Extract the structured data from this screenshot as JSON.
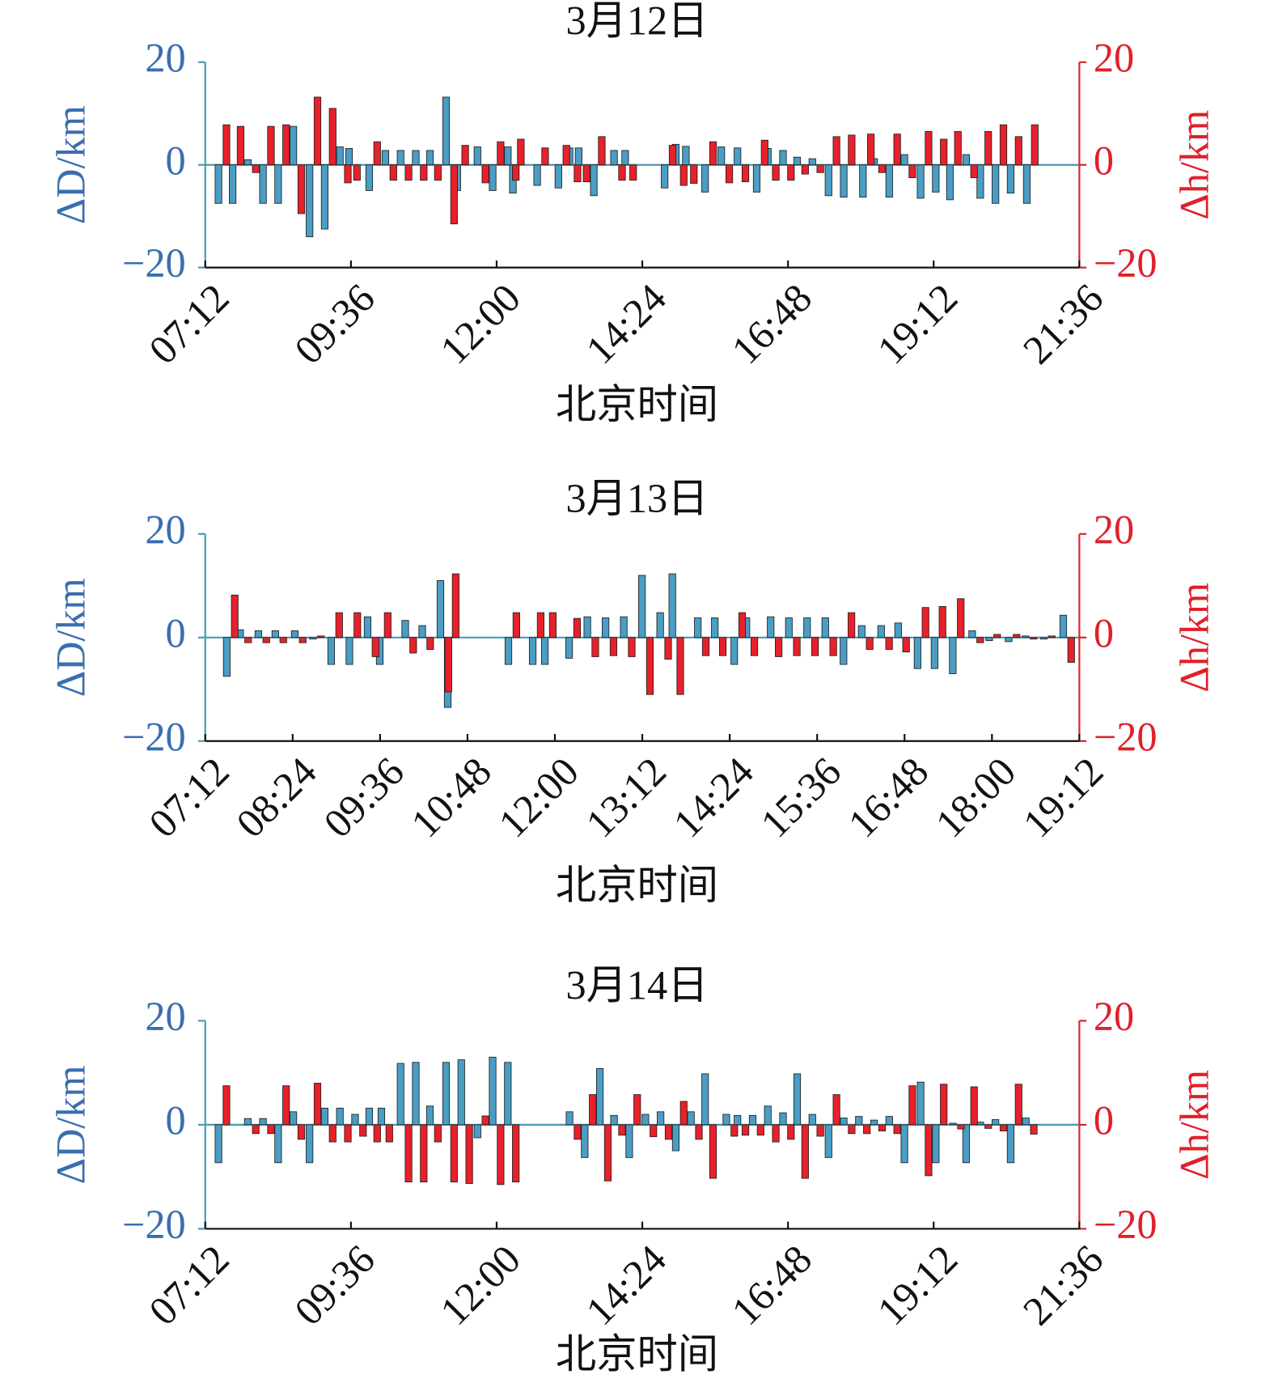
{
  "chart_data": [
    {
      "type": "bar",
      "title": "3月12日",
      "xlabel": "北京时间",
      "ylabel": "ΔD/km",
      "y2label": "Δh/km",
      "x": [
        449,
        463,
        478,
        493,
        508,
        523,
        539,
        554,
        569,
        578,
        598,
        614,
        629,
        644,
        658,
        674,
        685,
        705,
        720,
        735,
        740,
        764,
        785,
        796,
        805,
        820,
        840,
        851,
        890,
        901,
        911,
        930,
        946,
        962,
        981,
        992,
        1007,
        1021,
        1036,
        1052,
        1067,
        1086,
        1097,
        1112,
        1127,
        1143,
        1158,
        1172,
        1188,
        1202,
        1217,
        1232,
        1248
      ],
      "series": [
        {
          "color": "#4a9dc4",
          "values": [
            -7.5,
            -7.5,
            1,
            -7.5,
            -7.5,
            7.5,
            -14,
            -12.5,
            3.5,
            3.2,
            -5,
            2.8,
            2.8,
            2.8,
            2.8,
            13.2,
            -5,
            3.5,
            -5,
            3.5,
            -5.5,
            -4,
            -4.5,
            3.3,
            3.3,
            -6,
            2.8,
            2.8,
            -4.5,
            4,
            3.6,
            -5.3,
            3.5,
            3.3,
            -5.3,
            3.2,
            2.8,
            1.5,
            1.2,
            -6,
            -6.3,
            -6.3,
            1.2,
            -6.3,
            2,
            -6.5,
            -5.3,
            -6.8,
            2,
            -6.5,
            -7.5,
            -5.5,
            -7.5
          ]
        },
        {
          "color": "#e8202a",
          "axis": "y2",
          "values": [
            7.8,
            7.5,
            -1.5,
            7.5,
            7.8,
            -9.5,
            13.2,
            11,
            -3.5,
            -3,
            4.5,
            -3,
            -3,
            -3,
            -3,
            -11.5,
            3.8,
            -3.5,
            4.5,
            -3,
            5,
            3.3,
            3.8,
            -3.3,
            -3.3,
            5.5,
            -3,
            -3,
            3.8,
            -4,
            -3.6,
            4.5,
            -3.5,
            -3.3,
            4.8,
            -3,
            -3,
            -1.8,
            -1.5,
            5.5,
            5.8,
            6,
            -1.5,
            6,
            -2.5,
            6.5,
            5,
            6.5,
            -2.5,
            6.5,
            7.8,
            5.5,
            7.8
          ]
        }
      ],
      "xlim": [
        432,
        1296
      ],
      "xticks": [
        {
          "value": 432,
          "label": "07:12"
        },
        {
          "value": 576,
          "label": "09:36"
        },
        {
          "value": 720,
          "label": "12:00"
        },
        {
          "value": 864,
          "label": "14:24"
        },
        {
          "value": 1008,
          "label": "16:48"
        },
        {
          "value": 1152,
          "label": "19:12"
        },
        {
          "value": 1296,
          "label": "21:36"
        }
      ],
      "ylim": [
        -20,
        20
      ],
      "yticks": [
        {
          "value": -20,
          "label": "−20"
        },
        0,
        20
      ],
      "y2lim": [
        -20,
        20
      ],
      "y2ticks": [
        {
          "value": -20,
          "label": "−20"
        },
        0,
        20
      ]
    },
    {
      "type": "bar",
      "title": "3月13日",
      "xlabel": "北京时间",
      "ylabel": "ΔD/km",
      "y2label": "Δh/km",
      "x": [
        453,
        464,
        479,
        493,
        509,
        524,
        539,
        554,
        569,
        579,
        600,
        614,
        629,
        635,
        685,
        705,
        715,
        735,
        750,
        765,
        780,
        795,
        810,
        820,
        841,
        855,
        871,
        881,
        901,
        916,
        931,
        946,
        961,
        976,
        992,
        1006,
        1022,
        1036,
        1051,
        1067,
        1081,
        1097,
        1111,
        1126,
        1142
      ],
      "series": [
        {
          "color": "#4a9dc4",
          "values": [
            -7.5,
            1.5,
            1.3,
            1.3,
            1.3,
            -0.3,
            -5.2,
            -5.2,
            4,
            -5.2,
            3.3,
            2.3,
            11,
            -13.5,
            -5.2,
            -5.2,
            -5.2,
            -4,
            4,
            3.8,
            4,
            12,
            4.8,
            12.3,
            3.8,
            3.8,
            -5.2,
            3.8,
            4,
            3.8,
            3.8,
            3.8,
            -5.2,
            2.3,
            2.3,
            2.8,
            -6,
            -6,
            -7,
            1.3,
            -0.6,
            -0.8,
            0.3,
            -0.3,
            4.3
          ]
        },
        {
          "color": "#e8202a",
          "axis": "y2",
          "values": [
            8.2,
            -1,
            -1,
            -1,
            -1,
            0.3,
            4.8,
            4.8,
            -3.7,
            4.8,
            -3,
            -2.3,
            -10.5,
            12.3,
            4.8,
            4.8,
            4.8,
            3.7,
            -3.7,
            -3.5,
            -3.7,
            -11,
            -4.2,
            -11,
            -3.5,
            -3.5,
            4.8,
            -3.5,
            -3.7,
            -3.5,
            -3.5,
            -3.5,
            4.8,
            -2.3,
            -2.3,
            -2.8,
            5.8,
            6,
            7.5,
            -1,
            0.6,
            0.6,
            -0.3,
            0.3,
            -4.8
          ]
        }
      ],
      "xlim": [
        432,
        1152
      ],
      "xticks": [
        {
          "value": 432,
          "label": "07:12"
        },
        {
          "value": 504,
          "label": "08:24"
        },
        {
          "value": 576,
          "label": "09:36"
        },
        {
          "value": 648,
          "label": "10:48"
        },
        {
          "value": 720,
          "label": "12:00"
        },
        {
          "value": 792,
          "label": "13:12"
        },
        {
          "value": 864,
          "label": "14:24"
        },
        {
          "value": 936,
          "label": "15:36"
        },
        {
          "value": 1008,
          "label": "16:48"
        },
        {
          "value": 1080,
          "label": "18:00"
        },
        {
          "value": 1152,
          "label": "19:12"
        }
      ],
      "ylim": [
        -20,
        20
      ],
      "yticks": [
        {
          "value": -20,
          "label": "−20"
        },
        0,
        20
      ],
      "y2lim": [
        -20,
        20
      ],
      "y2ticks": [
        {
          "value": -20,
          "label": "−20"
        },
        0,
        20
      ]
    },
    {
      "type": "bar",
      "title": "3月14日",
      "xlabel": "北京时间",
      "ylabel": "ΔD/km",
      "y2label": "Δh/km",
      "x": [
        449,
        478,
        493,
        508,
        523,
        539,
        554,
        569,
        584,
        598,
        610,
        629,
        644,
        658,
        674,
        689,
        705,
        720,
        735,
        796,
        811,
        826,
        840,
        855,
        871,
        886,
        901,
        916,
        930,
        951,
        962,
        977,
        992,
        1007,
        1021,
        1036,
        1052,
        1067,
        1082,
        1097,
        1112,
        1127,
        1143,
        1158,
        1175,
        1188,
        1202,
        1217,
        1232,
        1247
      ],
      "series": [
        {
          "color": "#4a9dc4",
          "values": [
            -7.3,
            1.2,
            1.2,
            -7.3,
            2.5,
            -7.3,
            3.2,
            3.2,
            2,
            3.2,
            3.2,
            11.8,
            12,
            3.6,
            12,
            12.5,
            -2.5,
            13,
            12,
            2.5,
            -6.3,
            10.8,
            1.8,
            -6.3,
            2,
            2.5,
            -5,
            2.5,
            9.8,
            2,
            1.8,
            1.8,
            3.6,
            2.3,
            9.8,
            2,
            -6.3,
            1.3,
            1.6,
            0.9,
            1.6,
            -7.3,
            8.2,
            -7.3,
            0.3,
            -7.3,
            0.5,
            1,
            -7.3,
            1.3
          ]
        },
        {
          "color": "#e8202a",
          "axis": "y2",
          "values": [
            7.5,
            -1.7,
            -1.7,
            7.5,
            -2.8,
            8,
            -3.3,
            -3.3,
            -2.2,
            -3.3,
            -3.3,
            -11,
            -11,
            -3.3,
            -11,
            -11.3,
            1.7,
            -11.5,
            -11,
            -2.8,
            5.8,
            -10.8,
            -2,
            5.8,
            -2.3,
            -2.8,
            4.5,
            -2.8,
            -10.3,
            -2.2,
            -2,
            -2,
            -3.3,
            -2.8,
            -10.3,
            -2.2,
            5.8,
            -1.7,
            -1.7,
            -1.2,
            -1.7,
            7.5,
            -9.8,
            7.8,
            -0.8,
            7.3,
            -0.7,
            -1.2,
            7.8,
            -1.8
          ]
        }
      ],
      "xlim": [
        432,
        1296
      ],
      "xticks": [
        {
          "value": 432,
          "label": "07:12"
        },
        {
          "value": 576,
          "label": "09:36"
        },
        {
          "value": 720,
          "label": "12:00"
        },
        {
          "value": 864,
          "label": "14:24"
        },
        {
          "value": 1008,
          "label": "16:48"
        },
        {
          "value": 1152,
          "label": "19:12"
        },
        {
          "value": 1296,
          "label": "21:36"
        }
      ],
      "ylim": [
        -20,
        20
      ],
      "yticks": [
        {
          "value": -20,
          "label": "−20"
        },
        0,
        20
      ],
      "y2lim": [
        -20,
        20
      ],
      "y2ticks": [
        {
          "value": -20,
          "label": "−20"
        },
        0,
        20
      ]
    }
  ]
}
